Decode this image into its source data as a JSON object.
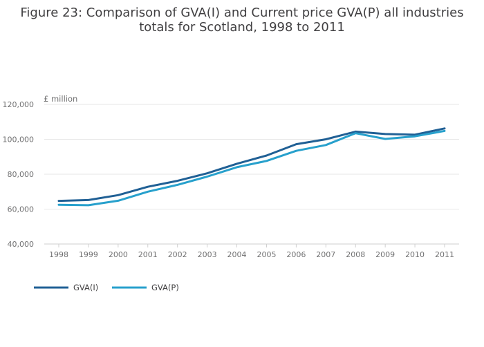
{
  "chart_data": {
    "type": "line",
    "title": "Figure 23: Comparison of GVA(I) and Current price GVA(P) all industries totals for Scotland, 1998 to 2011",
    "title_lines": [
      "Figure 23: Comparison of GVA(I) and Current price GVA(P) all industries",
      "totals for Scotland, 1998 to 2011"
    ],
    "ylabel": "£ million",
    "xlabel": "",
    "ylim": [
      40000,
      120000
    ],
    "yticks": [
      40000,
      60000,
      80000,
      100000,
      120000
    ],
    "ytick_labels": [
      "40,000",
      "60,000",
      "80,000",
      "100,000",
      "120,000"
    ],
    "x": [
      "1998",
      "1999",
      "2000",
      "2001",
      "2002",
      "2003",
      "2004",
      "2005",
      "2006",
      "2007",
      "2008",
      "2009",
      "2010",
      "2011"
    ],
    "grid": "horizontal",
    "legend_position": "bottom-left",
    "series": [
      {
        "name": "GVA(I)",
        "color": "#206095",
        "values": [
          64700,
          65200,
          68000,
          72800,
          76200,
          80500,
          86000,
          90700,
          97200,
          100000,
          104400,
          103000,
          102600,
          106200
        ]
      },
      {
        "name": "GVA(P)",
        "color": "#27a0cc",
        "values": [
          62500,
          62200,
          64800,
          70000,
          73900,
          78600,
          84000,
          87600,
          93400,
          96700,
          103500,
          100200,
          101700,
          104800
        ]
      }
    ]
  }
}
